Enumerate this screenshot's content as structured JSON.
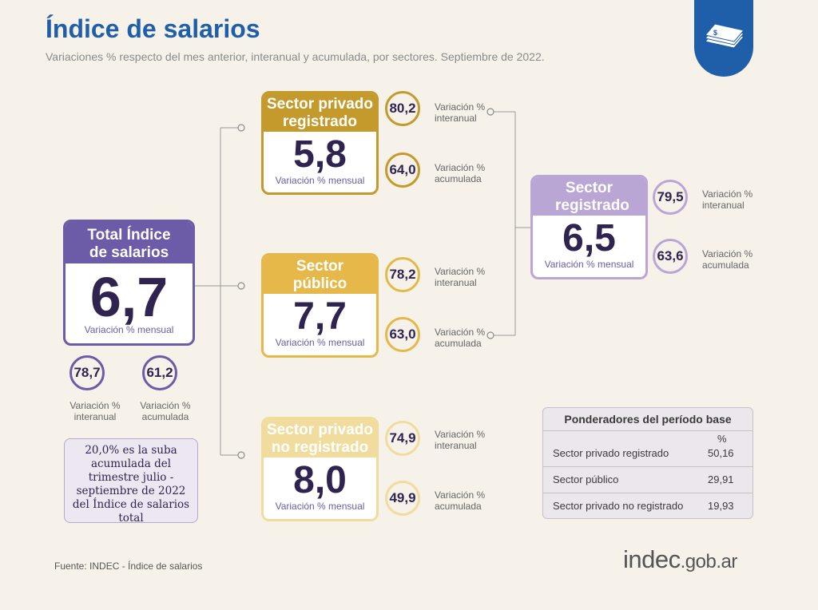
{
  "header": {
    "title": "Índice de salarios",
    "subtitle": "Variaciones % respecto del mes anterior, interanual y acumulada, por sectores. Septiembre de 2022."
  },
  "colors": {
    "title": "#1f5ea8",
    "total": "#6c5ba7",
    "privado_registrado": "#c49a2c",
    "publico": "#e6b84a",
    "no_registrado": "#f0dc9c",
    "registrado": "#b9a6d5"
  },
  "total": {
    "title": "Total Índice de salarios",
    "value": "6,7",
    "label": "Variación % mensual",
    "interanual": "78,7",
    "interanual_label": "Variación % interanual",
    "acumulada": "61,2",
    "acumulada_label": "Variación % acumulada"
  },
  "privado_registrado": {
    "title": "Sector privado registrado",
    "value": "5,8",
    "label": "Variación % mensual",
    "interanual": "80,2",
    "interanual_label": "Variación % interanual",
    "acumulada": "64,0",
    "acumulada_label": "Variación % acumulada"
  },
  "publico": {
    "title": "Sector público",
    "value": "7,7",
    "label": "Variación % mensual",
    "interanual": "78,2",
    "interanual_label": "Variación % interanual",
    "acumulada": "63,0",
    "acumulada_label": "Variación % acumulada"
  },
  "no_registrado": {
    "title": "Sector privado no registrado",
    "value": "8,0",
    "label": "Variación % mensual",
    "interanual": "74,9",
    "interanual_label": "Variación % interanual",
    "acumulada": "49,9",
    "acumulada_label": "Variación % acumulada"
  },
  "registrado": {
    "title": "Sector registrado",
    "value": "6,5",
    "label": "Variación % mensual",
    "interanual": "79,5",
    "interanual_label": "Variación % interanual",
    "acumulada": "63,6",
    "acumulada_label": "Variación % acumulada"
  },
  "note": "20,0% es la suba acumulada del trimestre julio - septiembre de 2022 del Índice de salarios total",
  "ponderadores": {
    "title": "Ponderadores del período base",
    "unit": "%",
    "rows": [
      {
        "name": "Sector privado registrado",
        "value": "50,16"
      },
      {
        "name": "Sector público",
        "value": "29,91"
      },
      {
        "name": "Sector privado no registrado",
        "value": "19,93"
      }
    ]
  },
  "source": "Fuente: INDEC - Índice de salarios",
  "logo": {
    "main": "indec",
    "domain": ".gob.ar"
  },
  "icons": {
    "badge": "money-stack-icon"
  }
}
